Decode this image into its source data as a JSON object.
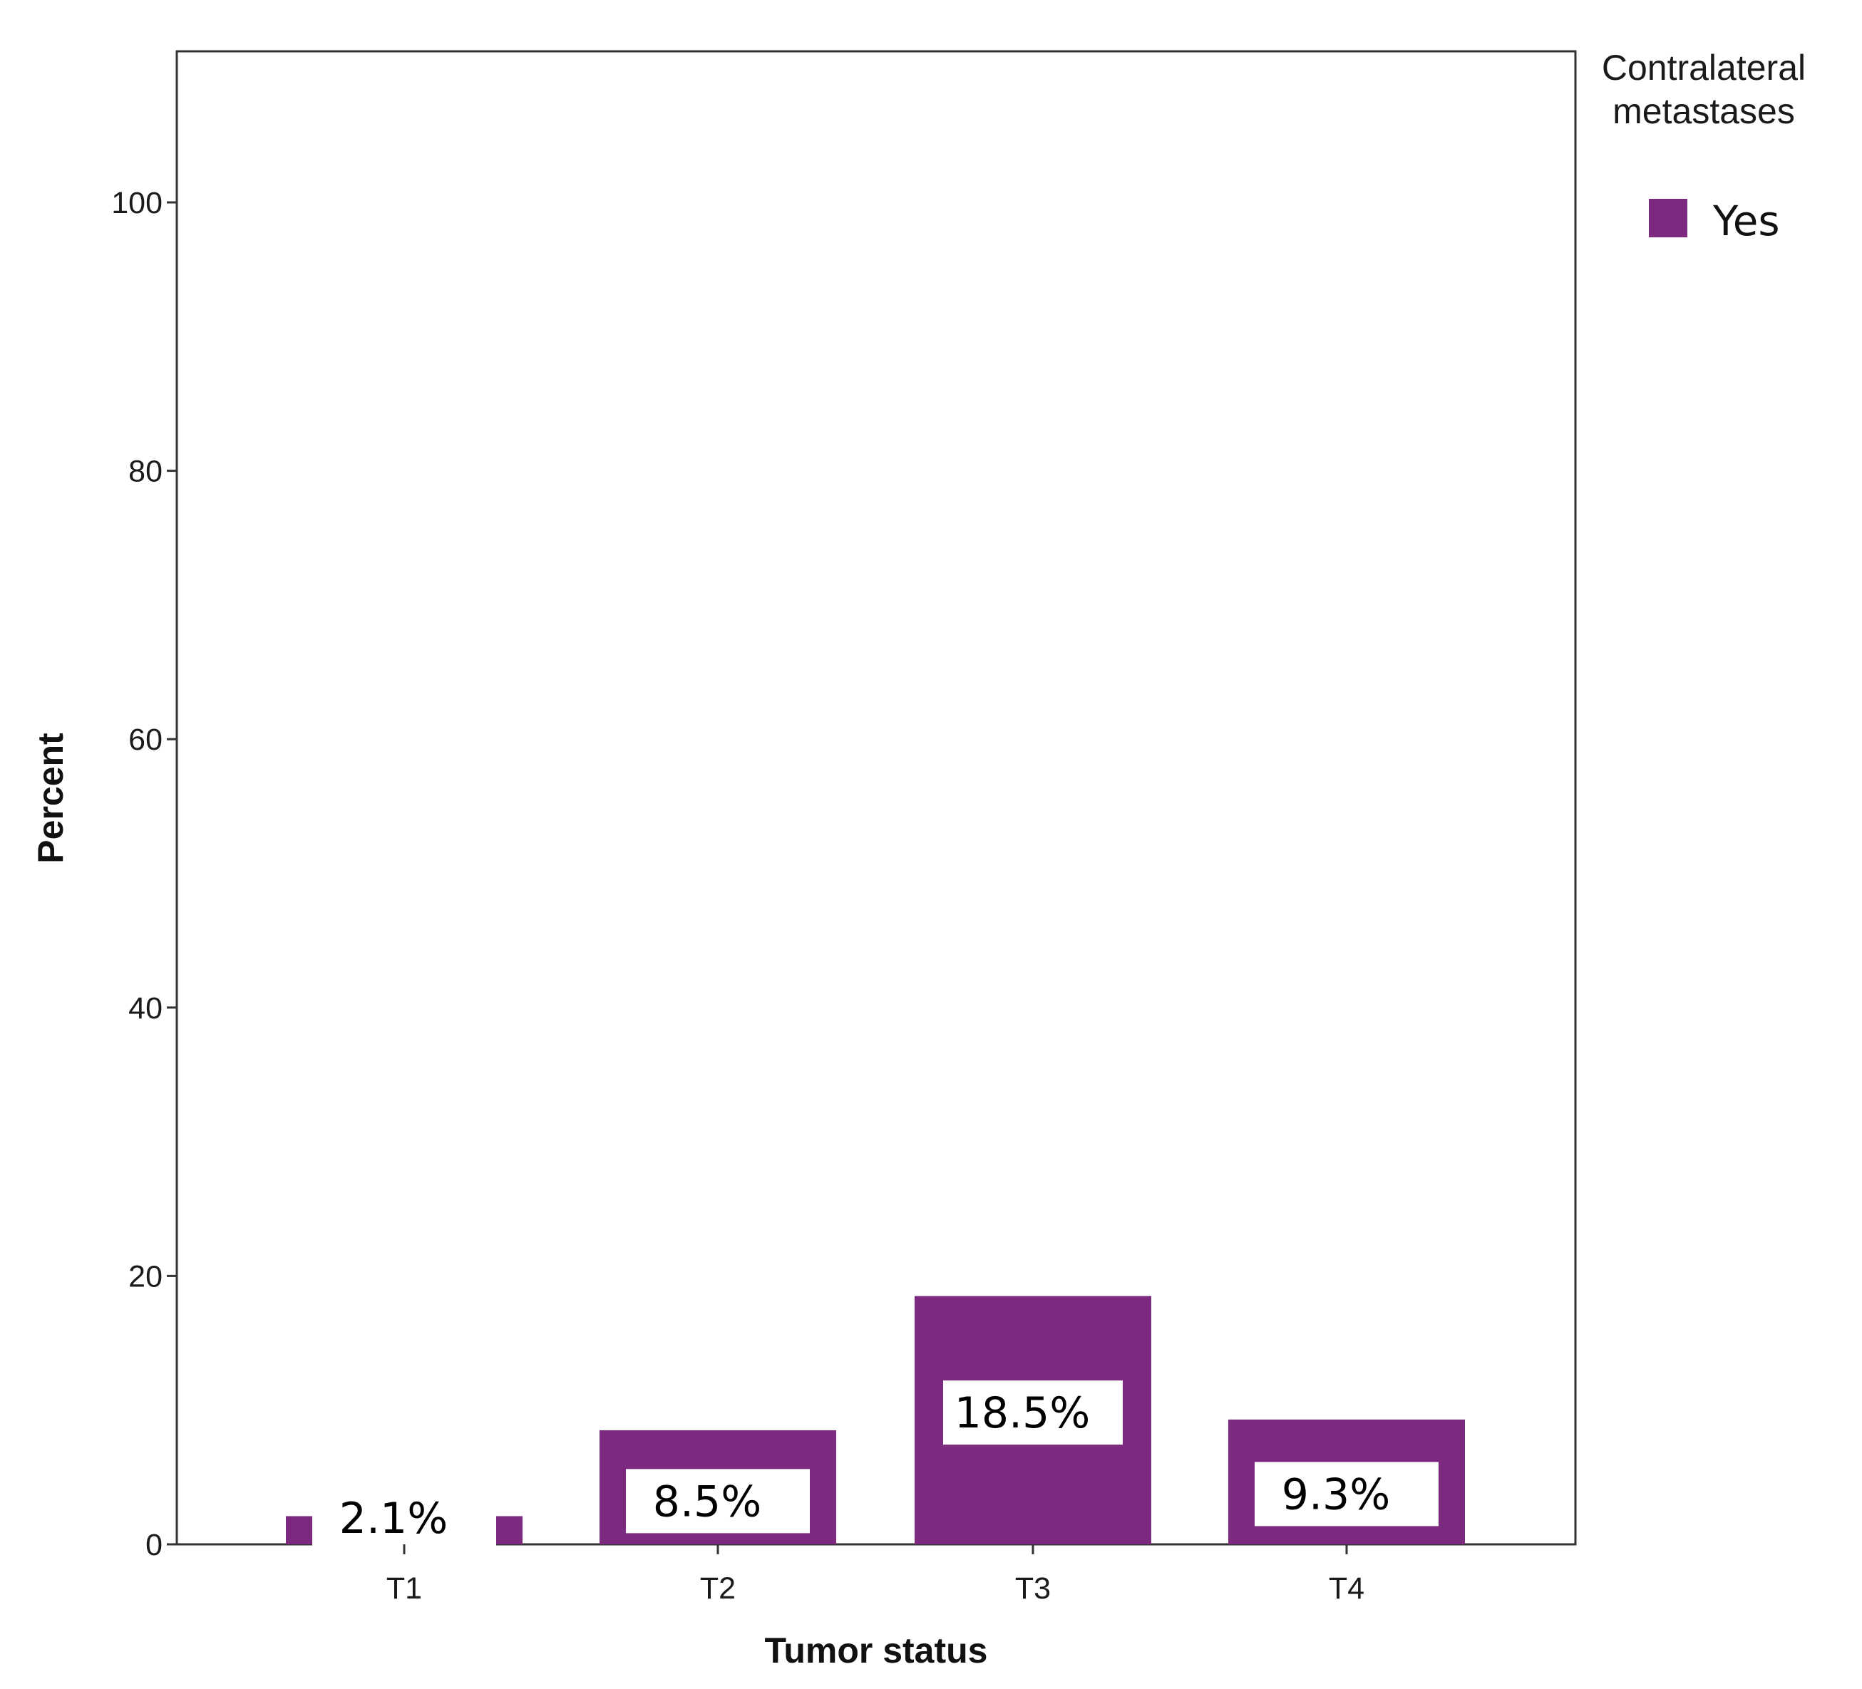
{
  "chart_data": {
    "type": "bar",
    "title": "",
    "xlabel": "Tumor status",
    "ylabel": "Percent",
    "categories": [
      "T1",
      "T2",
      "T3",
      "T4"
    ],
    "series": [
      {
        "name": "Yes",
        "values": [
          2.1,
          8.5,
          18.5,
          9.3
        ]
      }
    ],
    "data_labels": [
      "2.1%",
      "8.5%",
      "18.5%",
      "9.3%"
    ],
    "ylim": [
      0,
      112
    ],
    "yticks": [
      0,
      20,
      40,
      60,
      80,
      100
    ],
    "grid": false,
    "legend": {
      "title_lines": [
        "Contralateral",
        "metastases"
      ],
      "placement": "right-top"
    },
    "colors": {
      "bar": "#7b2a7f",
      "axis": "#333333",
      "label_box": "#ffffff"
    }
  }
}
